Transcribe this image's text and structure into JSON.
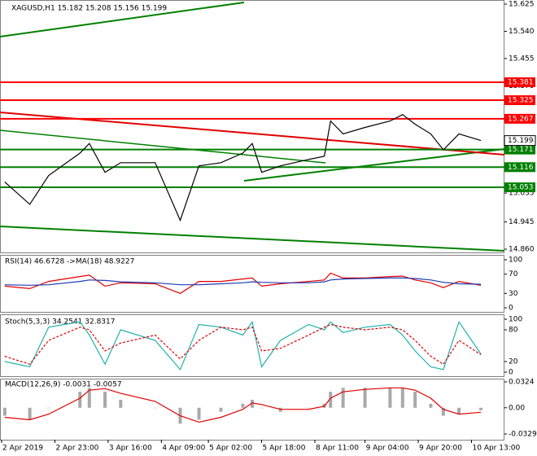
{
  "chart_data": [
    {
      "type": "line",
      "title": "XAGUSD,H1 15.182 15.208 15.156 15.199",
      "x": [
        1,
        9,
        15,
        25,
        28,
        33,
        38,
        49,
        57,
        63,
        70,
        77,
        80,
        83,
        89,
        98,
        103,
        105,
        109,
        116,
        124,
        128,
        132,
        137,
        141,
        146,
        153
      ],
      "xlim": [
        0,
        160
      ],
      "series": [
        {
          "color": "#000000",
          "values": [
            15.07,
            15.0,
            15.09,
            15.16,
            15.19,
            15.1,
            15.13,
            15.13,
            14.95,
            15.12,
            15.13,
            15.16,
            15.19,
            15.1,
            15.12,
            15.14,
            15.15,
            15.26,
            15.22,
            15.24,
            15.26,
            15.28,
            15.25,
            15.22,
            15.17,
            15.22,
            15.199
          ]
        }
      ],
      "ylim": [
        14.86,
        15.625
      ],
      "yticks": [
        15.625,
        {
          "value": 15.54,
          "label": "15.540"
        },
        15.455,
        {
          "value": 15.37,
          "label": "15.370"
        },
        15.035,
        14.945,
        {
          "value": 14.86,
          "label": "14.860"
        }
      ],
      "levels": [
        {
          "value": 15.381,
          "color": "#ff0000"
        },
        {
          "value": 15.325,
          "color": "#ff0000"
        },
        {
          "value": 15.267,
          "color": "#ff0000"
        },
        {
          "value": 15.171,
          "color": "#008000"
        },
        {
          "value": 15.116,
          "color": "#008000"
        },
        {
          "value": 15.053,
          "color": "#008000"
        }
      ],
      "last": 15.199
    },
    {
      "type": "line",
      "title": "RSI(14) 46.6728 ->MA(18) 48.9227",
      "x": [
        1,
        9,
        15,
        25,
        28,
        33,
        38,
        49,
        57,
        63,
        70,
        77,
        80,
        83,
        89,
        98,
        103,
        105,
        109,
        116,
        124,
        128,
        132,
        137,
        141,
        146,
        153
      ],
      "xlim": [
        0,
        160
      ],
      "series": [
        {
          "color": "#e00000",
          "values": [
            45,
            40,
            55,
            65,
            68,
            45,
            52,
            50,
            30,
            55,
            55,
            60,
            62,
            45,
            50,
            55,
            58,
            72,
            62,
            62,
            65,
            66,
            58,
            52,
            42,
            55,
            46.7
          ]
        },
        {
          "color": "#1e3cb4",
          "values": [
            48,
            47,
            48,
            55,
            58,
            57,
            54,
            52,
            48,
            48,
            50,
            52,
            54,
            53,
            52,
            52,
            54,
            58,
            60,
            61,
            62,
            62,
            61,
            58,
            53,
            50,
            48.9
          ]
        }
      ],
      "ylim": [
        0,
        100
      ],
      "yticks": [
        100,
        70,
        30,
        0
      ]
    },
    {
      "type": "line",
      "title": "Stoch(5,3,3) 34.2541 32.8317",
      "x": [
        1,
        9,
        15,
        25,
        28,
        33,
        38,
        49,
        57,
        63,
        70,
        77,
        80,
        83,
        89,
        98,
        103,
        105,
        109,
        116,
        124,
        128,
        132,
        137,
        141,
        146,
        153
      ],
      "xlim": [
        0,
        160
      ],
      "series": [
        {
          "color": "#20b2aa",
          "values": [
            20,
            10,
            85,
            95,
            70,
            15,
            80,
            60,
            5,
            90,
            85,
            70,
            95,
            10,
            60,
            90,
            80,
            95,
            75,
            85,
            90,
            70,
            40,
            10,
            5,
            95,
            34
          ]
        },
        {
          "color": "#e00000",
          "dash": true,
          "values": [
            30,
            15,
            60,
            85,
            80,
            40,
            55,
            70,
            25,
            60,
            85,
            80,
            85,
            40,
            45,
            70,
            85,
            90,
            85,
            80,
            85,
            80,
            60,
            30,
            15,
            60,
            33
          ]
        }
      ],
      "ylim": [
        0,
        100
      ],
      "yticks": [
        100,
        80,
        20,
        0
      ]
    },
    {
      "type": "macd",
      "title": "MACD(12,26,9) -0.0031 -0.0057",
      "x": [
        1,
        9,
        15,
        25,
        28,
        33,
        38,
        49,
        57,
        63,
        70,
        77,
        80,
        83,
        89,
        98,
        103,
        105,
        109,
        116,
        124,
        128,
        132,
        137,
        141,
        146,
        153
      ],
      "xlim": [
        0,
        160
      ],
      "series": [
        {
          "color": "#a9a9a9",
          "values": [
            -0.01,
            -0.015,
            0.0,
            0.02,
            0.025,
            0.02,
            0.01,
            0.0,
            -0.02,
            -0.015,
            -0.005,
            0.005,
            0.01,
            0.0,
            -0.005,
            0.0,
            0.005,
            0.02,
            0.025,
            0.025,
            0.025,
            0.025,
            0.02,
            0.005,
            -0.01,
            -0.008,
            -0.0031
          ]
        },
        {
          "color": "#e00000",
          "values": [
            -0.012,
            -0.015,
            -0.008,
            0.012,
            0.022,
            0.024,
            0.018,
            0.008,
            -0.01,
            -0.018,
            -0.012,
            -0.002,
            0.006,
            0.004,
            -0.002,
            -0.002,
            0.002,
            0.012,
            0.02,
            0.023,
            0.025,
            0.025,
            0.022,
            0.012,
            -0.002,
            -0.008,
            -0.0057
          ]
        }
      ],
      "ylim": [
        -0.0329,
        0.0324
      ],
      "yticks": [
        0.0324,
        {
          "value": 0,
          "label": "0.00"
        },
        -0.0329
      ],
      "xticks": [
        {
          "value": 0,
          "label": "2 Apr 2019"
        },
        {
          "value": 17,
          "label": "2 Apr 23:00"
        },
        {
          "value": 34,
          "label": "3 Apr 16:00"
        },
        {
          "value": 51,
          "label": "4 Apr 09:00"
        },
        {
          "value": 66,
          "label": "5 Apr 02:00"
        },
        {
          "value": 83,
          "label": "5 Apr 18:00"
        },
        {
          "value": 100,
          "label": "8 Apr 11:00"
        },
        {
          "value": 116,
          "label": "9 Apr 04:00"
        },
        {
          "value": 133,
          "label": "9 Apr 20:00"
        },
        {
          "value": 150,
          "label": "10 Apr 13:00"
        }
      ]
    }
  ]
}
